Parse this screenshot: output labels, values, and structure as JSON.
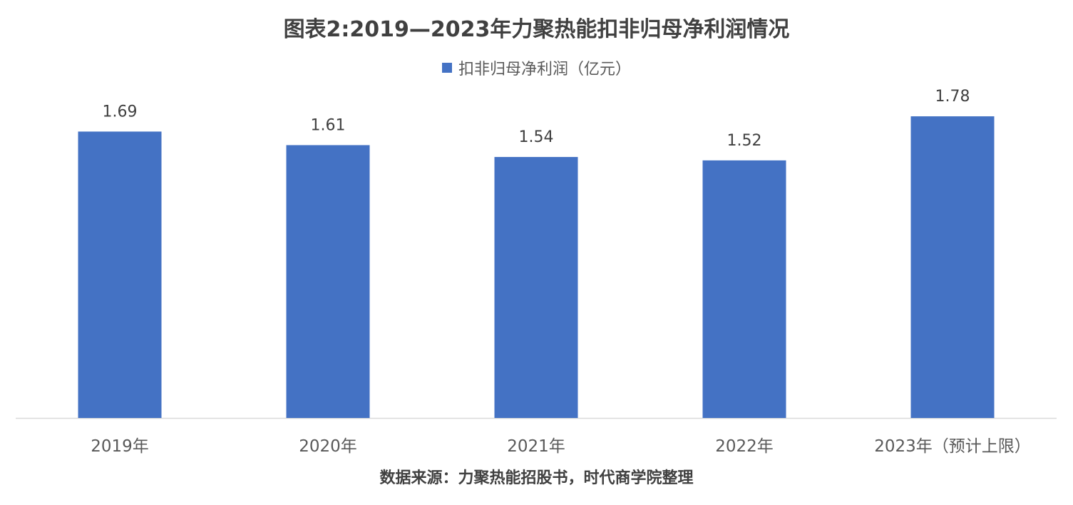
{
  "chart_data": {
    "type": "bar",
    "title": "图表2:2019—2023年力聚热能扣非归母净利润情况",
    "categories": [
      "2019年",
      "2020年",
      "2021年",
      "2022年",
      "2023年（预计上限）"
    ],
    "series": [
      {
        "name": "扣非归母净利润（亿元）",
        "values": [
          1.69,
          1.61,
          1.54,
          1.52,
          1.78
        ],
        "data_labels": [
          "1.69",
          "1.61",
          "1.54",
          "1.52",
          "1.78"
        ],
        "color": "#4472C4"
      }
    ],
    "ylim": [
      0,
      2
    ],
    "xlabel": "",
    "ylabel": "",
    "grid": false,
    "legend_position": "top",
    "bar_color": "#4472C4",
    "axis_color": "#D9D9D9"
  },
  "source_note": "数据来源：力聚热能招股书，时代商学院整理"
}
